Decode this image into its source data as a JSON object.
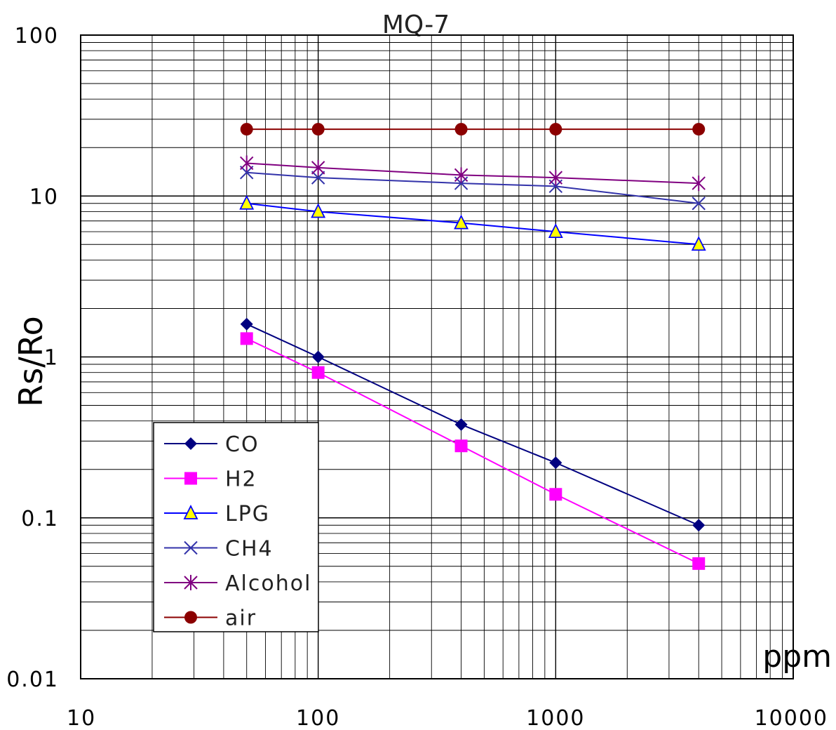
{
  "chart_data": {
    "type": "line",
    "title": "MQ-7",
    "xlabel": "ppm",
    "ylabel": "Rs/Ro",
    "x_scale": "log",
    "y_scale": "log",
    "xlim": [
      10,
      10000
    ],
    "ylim": [
      0.01,
      100
    ],
    "x_ticks": [
      "10",
      "100",
      "1000",
      "10000"
    ],
    "y_ticks": [
      "0.01",
      "0.1",
      "1",
      "10",
      "100"
    ],
    "grid": true,
    "legend_position": "lower-left",
    "series": [
      {
        "name": "CO",
        "color": "#000080",
        "marker": "diamond",
        "x": [
          50,
          100,
          400,
          1000,
          4000
        ],
        "y": [
          1.6,
          1.0,
          0.38,
          0.22,
          0.09
        ]
      },
      {
        "name": "H2",
        "color": "#ff00ff",
        "marker": "square",
        "x": [
          50,
          100,
          400,
          1000,
          4000
        ],
        "y": [
          1.3,
          0.8,
          0.28,
          0.14,
          0.052
        ]
      },
      {
        "name": "LPG",
        "color": "#0000ff",
        "marker": "triangle",
        "marker_fill": "#ffff00",
        "x": [
          50,
          100,
          400,
          1000,
          4000
        ],
        "y": [
          9,
          8,
          6.8,
          6,
          5
        ]
      },
      {
        "name": "CH4",
        "color": "#3333aa",
        "marker": "x",
        "x": [
          50,
          100,
          400,
          1000,
          4000
        ],
        "y": [
          14,
          13,
          12,
          11.5,
          9
        ]
      },
      {
        "name": "Alcohol",
        "color": "#800080",
        "marker": "asterisk",
        "x": [
          50,
          100,
          400,
          1000,
          4000
        ],
        "y": [
          16,
          15,
          13.5,
          13,
          12
        ]
      },
      {
        "name": "air",
        "color": "#8b0000",
        "marker": "circle",
        "x": [
          50,
          100,
          400,
          1000,
          4000
        ],
        "y": [
          26,
          26,
          26,
          26,
          26
        ]
      }
    ]
  }
}
